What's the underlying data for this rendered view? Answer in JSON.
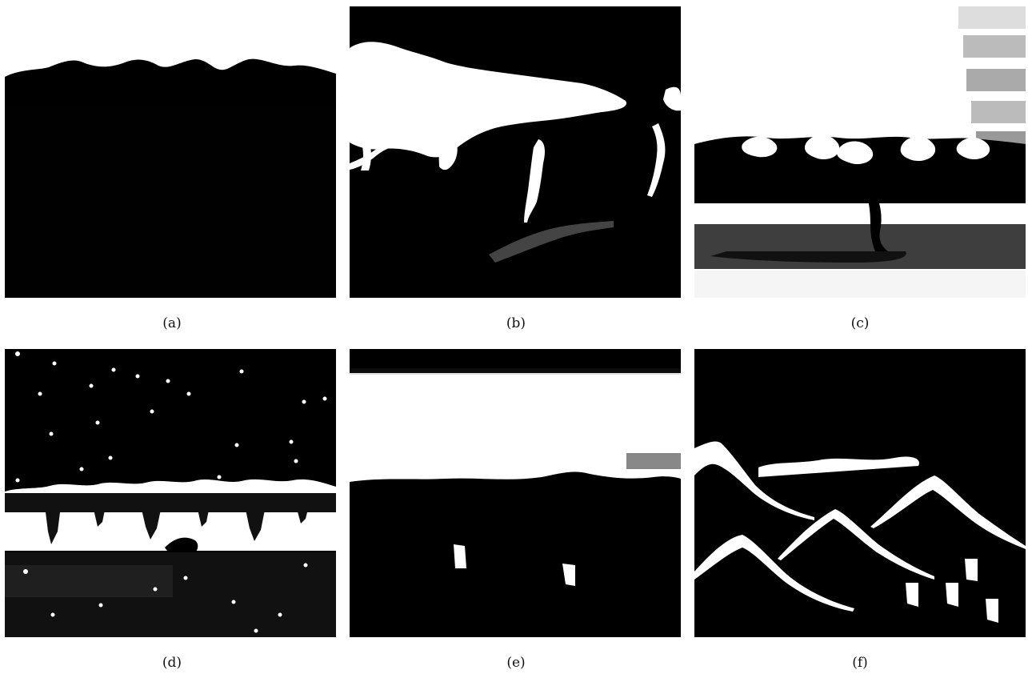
{
  "captions": {
    "a": "(a)",
    "b": "(b)",
    "c": "(c)",
    "d": "(d)",
    "e": "(e)",
    "f": "(f)"
  },
  "colors": {
    "ink": "#000000",
    "paper": "#ffffff"
  }
}
